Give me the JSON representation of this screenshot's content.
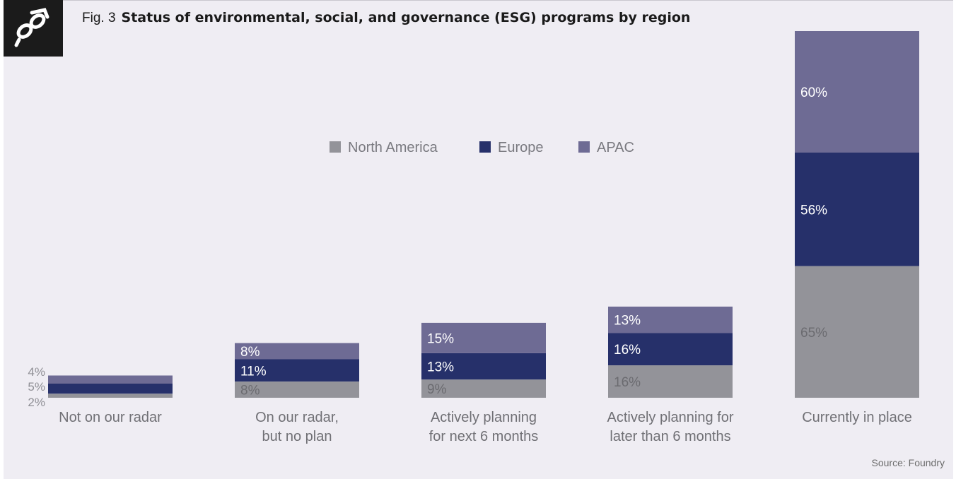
{
  "figure": {
    "fig_number": "Fig. 3",
    "title": "Status of environmental, social, and governance (ESG) programs by region",
    "source": "Source: Foundry"
  },
  "colors": {
    "north_america": "#939399",
    "europe": "#26306a",
    "apac": "#6e6b94",
    "background": "#efedf3"
  },
  "chart_data": {
    "type": "bar",
    "stacked": true,
    "categories": [
      "Not on our radar",
      "On our radar, but no plan",
      "Actively planning for next 6 months",
      "Actively planning for later than 6 months",
      "Currently in place"
    ],
    "category_lines": [
      [
        "Not on our radar"
      ],
      [
        "On our radar,",
        "but no plan"
      ],
      [
        "Actively planning",
        "for next 6 months"
      ],
      [
        "Actively planning for",
        "later than 6 months"
      ],
      [
        "Currently in place"
      ]
    ],
    "series": [
      {
        "name": "North America",
        "values": [
          2,
          8,
          9,
          16,
          65
        ],
        "labels": [
          "2%",
          "8%",
          "9%",
          "16%",
          "65%"
        ]
      },
      {
        "name": "Europe",
        "values": [
          5,
          11,
          13,
          16,
          56
        ],
        "labels": [
          "5%",
          "11%",
          "13%",
          "16%",
          "56%"
        ]
      },
      {
        "name": "APAC",
        "values": [
          4,
          8,
          15,
          13,
          60
        ],
        "labels": [
          "4%",
          "8%",
          "15%",
          "13%",
          "60%"
        ]
      }
    ],
    "legend_position": "top-center",
    "grid": false,
    "ylim": [
      0,
      181
    ]
  }
}
